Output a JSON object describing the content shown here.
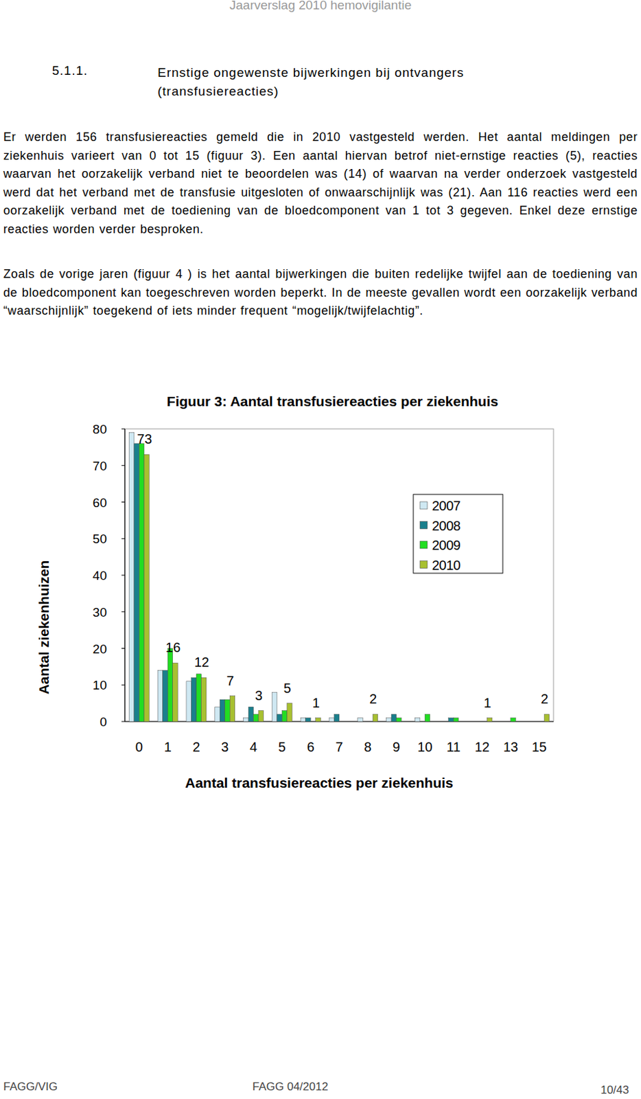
{
  "header": {
    "running_title": "Jaarverslag 2010 hemovigilantie"
  },
  "section": {
    "number": "5.1.1.",
    "title": "Ernstige ongewenste bijwerkingen bij ontvangers (transfusiereacties)"
  },
  "paragraphs": [
    "Er werden 156 transfusiereacties gemeld die in 2010 vastgesteld werden. Het aantal meldingen per ziekenhuis varieert van 0 tot 15 (figuur 3). Een aantal hiervan betrof niet-ernstige reacties (5), reacties waarvan het oorzakelijk verband niet te beoordelen was (14) of waarvan na verder onderzoek vastgesteld werd dat het verband met de transfusie uitgesloten of onwaarschijnlijk was (21). Aan 116 reacties werd een oorzakelijk verband met de toediening van de bloedcomponent van 1 tot 3 gegeven. Enkel deze ernstige reacties worden verder besproken.",
    "Zoals de vorige jaren (figuur 4 ) is het aantal bijwerkingen die buiten redelijke twijfel aan de toediening van de bloedcomponent kan toegeschreven worden beperkt. In de meeste gevallen wordt een oorzakelijk verband “waarschijnlijk” toegekend of iets minder frequent “mogelijk/twijfelachtig”."
  ],
  "chart_data": {
    "type": "bar",
    "title": "Figuur 3: Aantal transfusiereacties per ziekenhuis",
    "x_label": "Aantal transfusiereacties per ziekenhuis",
    "y_label": "Aantal ziekenhuizen",
    "categories": [
      "0",
      "1",
      "2",
      "3",
      "4",
      "5",
      "6",
      "7",
      "8",
      "9",
      "10",
      "11",
      "12",
      "13",
      "15"
    ],
    "series": [
      {
        "name": "2007",
        "color": "#cfe8f2",
        "values": [
          79,
          14,
          11,
          4,
          1,
          8,
          1,
          1,
          1,
          1,
          1,
          0,
          0,
          0,
          0
        ]
      },
      {
        "name": "2008",
        "color": "#1a7f8c",
        "values": [
          76,
          14,
          12,
          6,
          4,
          2,
          1,
          2,
          0,
          2,
          0,
          1,
          0,
          0,
          0
        ]
      },
      {
        "name": "2009",
        "color": "#22dd22",
        "values": [
          76,
          20,
          13,
          6,
          2,
          3,
          0,
          0,
          0,
          1,
          2,
          1,
          0,
          1,
          0
        ]
      },
      {
        "name": "2010",
        "color": "#a8c030",
        "values": [
          73,
          16,
          12,
          7,
          3,
          5,
          1,
          0,
          2,
          0,
          0,
          0,
          1,
          0,
          2
        ],
        "data_labels": true,
        "value_labels": [
          "73",
          "16",
          "12",
          "7",
          "3",
          "5",
          "1",
          null,
          "2",
          null,
          null,
          null,
          "1",
          null,
          "2"
        ]
      }
    ],
    "ylim": [
      0,
      80
    ],
    "yticks": [
      0,
      10,
      20,
      30,
      40,
      50,
      60,
      70,
      80
    ],
    "grid": false,
    "legend": "upper right"
  },
  "footer": {
    "left": "FAGG/VIG",
    "center": "FAGG 04/2012",
    "right": "10/43"
  }
}
